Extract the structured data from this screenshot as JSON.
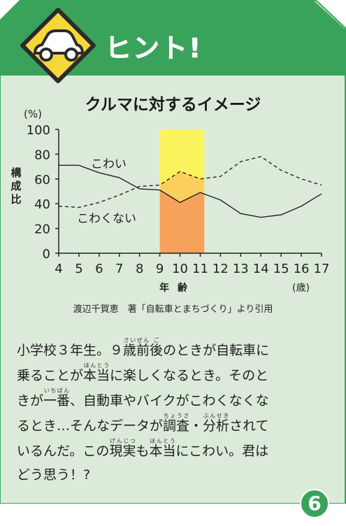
{
  "banner": {
    "title": "ヒント!",
    "icon": "car-warning-sign-icon"
  },
  "colors": {
    "green": "#3aa35b",
    "panel": "#dcebd9",
    "yellow": "#fbf35c",
    "orange": "#f6a25a"
  },
  "chart_data": {
    "type": "line",
    "title": "クルマに対するイメージ",
    "unit": "(%)",
    "ylabel": "構成比",
    "xlabel": "年齢",
    "xunit": "(歳)",
    "x": [
      4,
      5,
      6,
      7,
      8,
      9,
      10,
      11,
      12,
      13,
      14,
      15,
      16,
      17
    ],
    "ylim": [
      0,
      100
    ],
    "xlim": [
      4,
      17
    ],
    "yticks": [
      0,
      20,
      40,
      60,
      80,
      100
    ],
    "highlight_range": [
      9,
      11.2
    ],
    "series": [
      {
        "name": "こわい",
        "style": "solid",
        "values": [
          71,
          71,
          65,
          61,
          52,
          51,
          41,
          49,
          43,
          32,
          29,
          31,
          38,
          48
        ]
      },
      {
        "name": "こわくない",
        "style": "dashed",
        "values": [
          38,
          37,
          41,
          47,
          54,
          55,
          66,
          60,
          62,
          74,
          78,
          67,
          60,
          55
        ]
      }
    ],
    "labels": [
      "こわい",
      "こわくない"
    ]
  },
  "source": "渡辺千賀恵　著「自転車とまちづくり」より引用",
  "body": {
    "line1": [
      "小学校３年生。９",
      {
        "t": "歳",
        "r": "さい"
      },
      {
        "t": "前",
        "r": "ぜん"
      },
      {
        "t": "後",
        "r": "ご"
      },
      "のときが自転車に"
    ],
    "line2": [
      "乗ることが",
      {
        "t": "本当",
        "r": "ほんとう"
      },
      "に楽しくなるとき。そのと"
    ],
    "line3": [
      "きが",
      {
        "t": "一番",
        "r": "いちばん"
      },
      "、自動車やバイクがこわくなくな"
    ],
    "line4": [
      "るとき…そんなデータが",
      {
        "t": "調査",
        "r": "ちょうさ"
      },
      "・",
      {
        "t": "分析",
        "r": "ぶんせき"
      },
      "されて"
    ],
    "line5": [
      "いるんだ。この",
      {
        "t": "現実",
        "r": "げんじつ"
      },
      "も",
      {
        "t": "本当",
        "r": "ほんとう"
      },
      "にこわい。君は"
    ],
    "line6": [
      "どう思う！?"
    ]
  },
  "page_number": "6"
}
